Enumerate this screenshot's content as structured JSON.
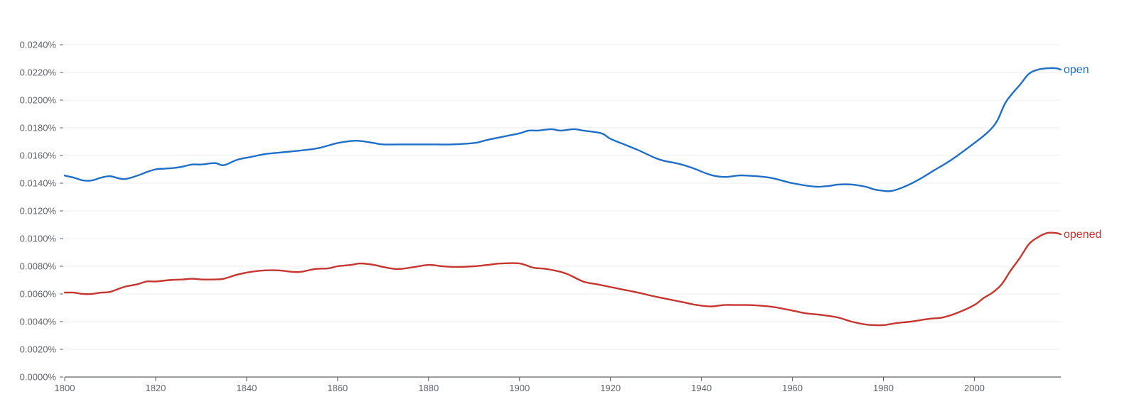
{
  "chart_data": {
    "type": "line",
    "xlim": [
      1800,
      2019
    ],
    "ylim": [
      0,
      0.024
    ],
    "grid": true,
    "y_ticks": [
      {
        "value": 0.0,
        "label": "0.0000%"
      },
      {
        "value": 0.002,
        "label": "0.0020%"
      },
      {
        "value": 0.004,
        "label": "0.0040%"
      },
      {
        "value": 0.006,
        "label": "0.0060%"
      },
      {
        "value": 0.008,
        "label": "0.0080%"
      },
      {
        "value": 0.01,
        "label": "0.0100%"
      },
      {
        "value": 0.012,
        "label": "0.0120%"
      },
      {
        "value": 0.014,
        "label": "0.0140%"
      },
      {
        "value": 0.016,
        "label": "0.0160%"
      },
      {
        "value": 0.018,
        "label": "0.0180%"
      },
      {
        "value": 0.02,
        "label": "0.0200%"
      },
      {
        "value": 0.022,
        "label": "0.0220%"
      },
      {
        "value": 0.024,
        "label": "0.0240%"
      }
    ],
    "x_ticks": [
      {
        "value": 1800,
        "label": "1800"
      },
      {
        "value": 1820,
        "label": "1820"
      },
      {
        "value": 1840,
        "label": "1840"
      },
      {
        "value": 1860,
        "label": "1860"
      },
      {
        "value": 1880,
        "label": "1880"
      },
      {
        "value": 1900,
        "label": "1900"
      },
      {
        "value": 1920,
        "label": "1920"
      },
      {
        "value": 1940,
        "label": "1940"
      },
      {
        "value": 1960,
        "label": "1960"
      },
      {
        "value": 1980,
        "label": "1980"
      },
      {
        "value": 2000,
        "label": "2000"
      }
    ],
    "series": [
      {
        "name": "open",
        "color": "#1f6fc8",
        "x": [
          1800,
          1802,
          1804,
          1806,
          1808,
          1810,
          1813,
          1816,
          1818,
          1820,
          1822,
          1824,
          1826,
          1828,
          1830,
          1833,
          1835,
          1838,
          1841,
          1844,
          1847,
          1850,
          1853,
          1856,
          1860,
          1863,
          1865,
          1868,
          1870,
          1875,
          1880,
          1885,
          1890,
          1892,
          1894,
          1897,
          1900,
          1902,
          1904,
          1907,
          1909,
          1912,
          1914,
          1918,
          1920,
          1923,
          1926,
          1930,
          1932,
          1935,
          1938,
          1942,
          1945,
          1948,
          1950,
          1955,
          1960,
          1965,
          1968,
          1970,
          1973,
          1976,
          1978,
          1980,
          1982,
          1985,
          1988,
          1991,
          1995,
          2000,
          2003,
          2005,
          2007,
          2010,
          2012,
          2014,
          2016,
          2018,
          2019
        ],
        "values": [
          0.01455,
          0.0144,
          0.0142,
          0.0142,
          0.0144,
          0.0145,
          0.0143,
          0.01455,
          0.0148,
          0.015,
          0.01505,
          0.0151,
          0.0152,
          0.01535,
          0.01535,
          0.01545,
          0.0153,
          0.0157,
          0.0159,
          0.0161,
          0.0162,
          0.0163,
          0.0164,
          0.01655,
          0.0169,
          0.01705,
          0.01705,
          0.0169,
          0.0168,
          0.0168,
          0.0168,
          0.0168,
          0.0169,
          0.01705,
          0.0172,
          0.0174,
          0.0176,
          0.0178,
          0.0178,
          0.0179,
          0.0178,
          0.0179,
          0.0178,
          0.0176,
          0.0172,
          0.0168,
          0.0164,
          0.0158,
          0.0156,
          0.0154,
          0.0151,
          0.0146,
          0.01445,
          0.01455,
          0.01455,
          0.0144,
          0.014,
          0.01375,
          0.0138,
          0.0139,
          0.0139,
          0.01375,
          0.01355,
          0.01345,
          0.01345,
          0.0138,
          0.0143,
          0.0149,
          0.0157,
          0.0169,
          0.0177,
          0.0185,
          0.0199,
          0.0211,
          0.0219,
          0.0222,
          0.0223,
          0.0223,
          0.0222
        ]
      },
      {
        "name": "opened",
        "color": "#c5362f",
        "x": [
          1800,
          1802,
          1804,
          1806,
          1808,
          1810,
          1813,
          1816,
          1818,
          1820,
          1823,
          1826,
          1828,
          1830,
          1833,
          1835,
          1838,
          1841,
          1844,
          1847,
          1850,
          1852,
          1855,
          1858,
          1860,
          1863,
          1865,
          1868,
          1870,
          1873,
          1876,
          1880,
          1883,
          1886,
          1890,
          1893,
          1896,
          1900,
          1903,
          1906,
          1910,
          1914,
          1917,
          1920,
          1923,
          1926,
          1930,
          1933,
          1936,
          1939,
          1942,
          1945,
          1948,
          1950,
          1953,
          1956,
          1960,
          1963,
          1966,
          1970,
          1973,
          1976,
          1978,
          1980,
          1983,
          1986,
          1990,
          1993,
          1996,
          2000,
          2002,
          2004,
          2006,
          2008,
          2010,
          2012,
          2014,
          2016,
          2018,
          2019
        ],
        "values": [
          0.0061,
          0.0061,
          0.006,
          0.006,
          0.0061,
          0.00615,
          0.0065,
          0.0067,
          0.0069,
          0.0069,
          0.007,
          0.00705,
          0.0071,
          0.00705,
          0.00705,
          0.0071,
          0.0074,
          0.0076,
          0.0077,
          0.0077,
          0.0076,
          0.0076,
          0.0078,
          0.00785,
          0.008,
          0.0081,
          0.0082,
          0.0081,
          0.00795,
          0.0078,
          0.0079,
          0.0081,
          0.008,
          0.00795,
          0.008,
          0.0081,
          0.0082,
          0.0082,
          0.0079,
          0.0078,
          0.0075,
          0.0069,
          0.0067,
          0.0065,
          0.0063,
          0.0061,
          0.0058,
          0.0056,
          0.0054,
          0.0052,
          0.0051,
          0.0052,
          0.0052,
          0.0052,
          0.00515,
          0.00505,
          0.0048,
          0.0046,
          0.0045,
          0.0043,
          0.004,
          0.0038,
          0.00375,
          0.00375,
          0.0039,
          0.004,
          0.0042,
          0.0043,
          0.0046,
          0.0052,
          0.0057,
          0.0061,
          0.0067,
          0.0077,
          0.0086,
          0.0096,
          0.0101,
          0.0104,
          0.0104,
          0.0103
        ]
      }
    ]
  }
}
